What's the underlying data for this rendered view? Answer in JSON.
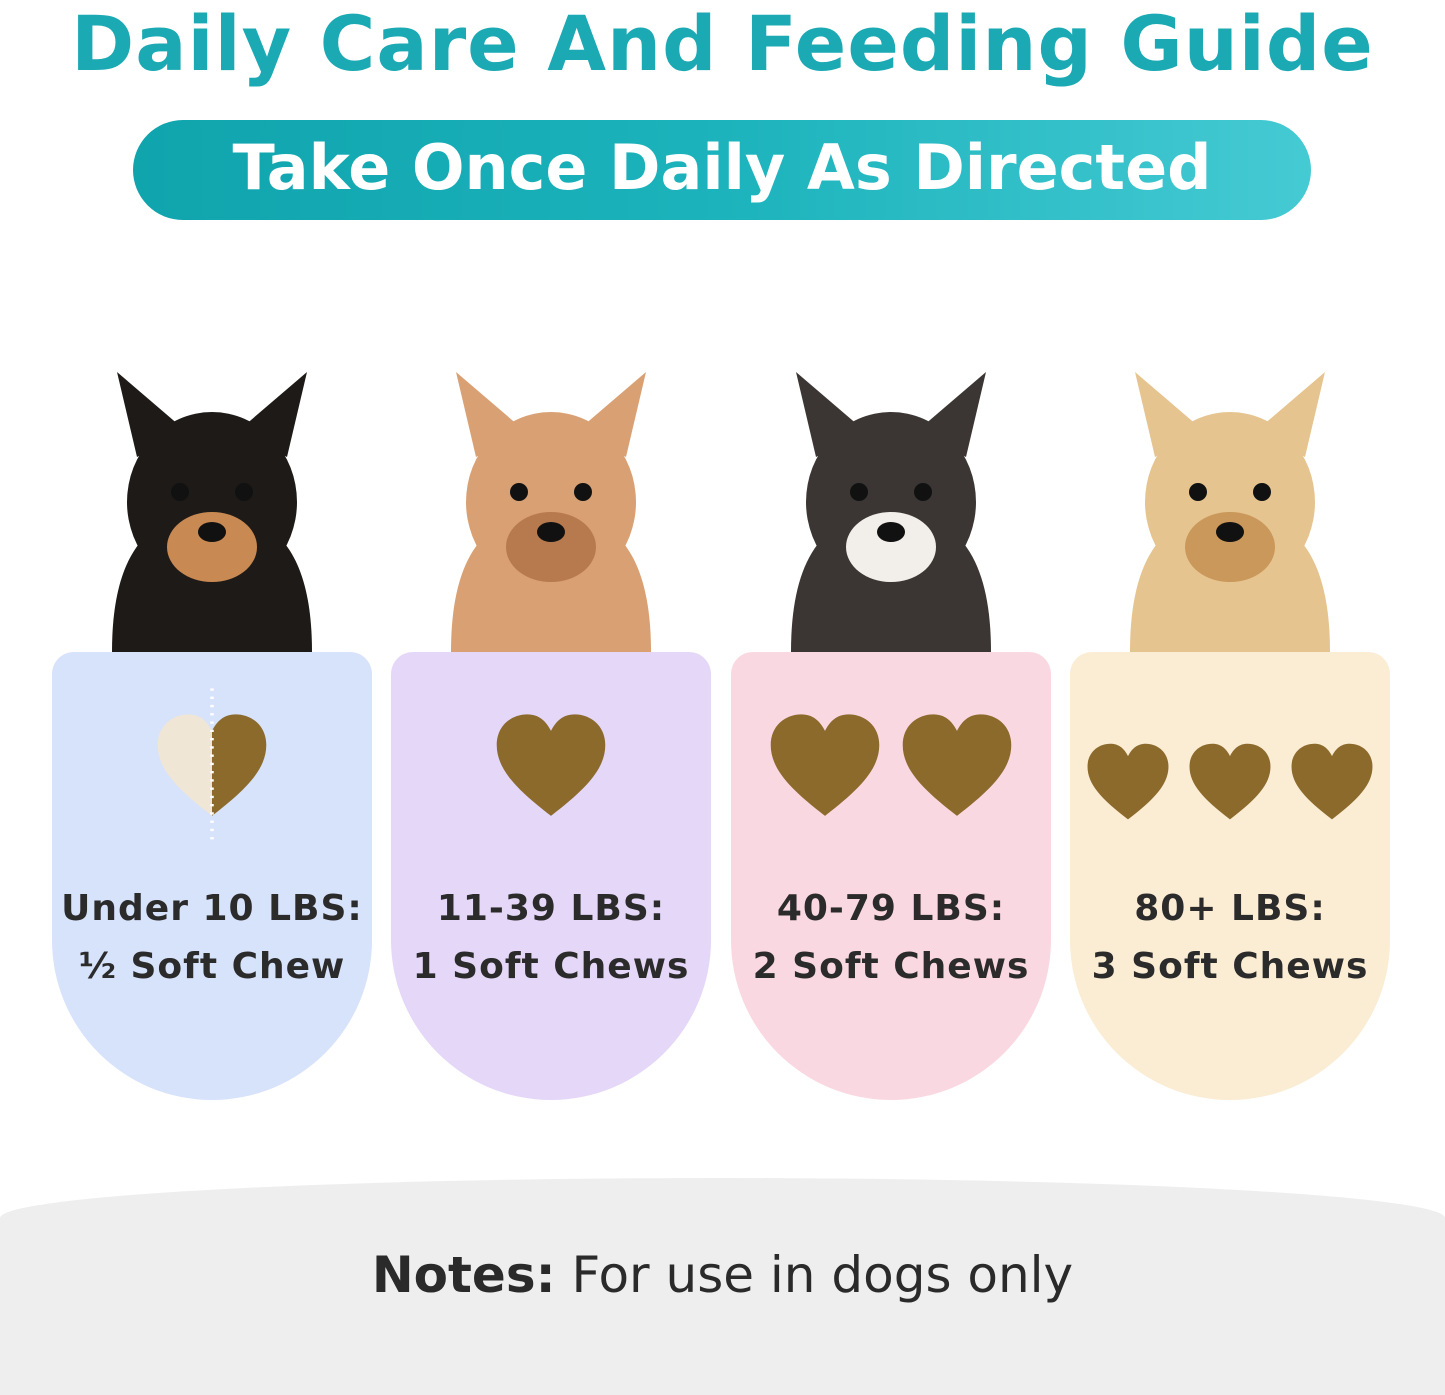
{
  "title": "Daily Care And Feeding Guide",
  "subtitle": "Take Once Daily As Directed",
  "cards": [
    {
      "weight": "Under 10 LBS:",
      "dose": "½ Soft Chew",
      "chews": 0.5,
      "color": "#d7e2fb",
      "dog": "chihuahua"
    },
    {
      "weight": "11-39 LBS:",
      "dose": "1 Soft Chews",
      "chews": 1,
      "color": "#e5d7f8",
      "dog": "poodle"
    },
    {
      "weight": "40-79 LBS:",
      "dose": "2 Soft Chews",
      "chews": 2,
      "color": "#fad8e1",
      "dog": "french-bulldog"
    },
    {
      "weight": "80+ LBS:",
      "dose": "3 Soft Chews",
      "chews": 3,
      "color": "#fbecd4",
      "dog": "golden-retriever"
    }
  ],
  "notes": {
    "label": "Notes:",
    "text": " For use in dogs only"
  },
  "colors": {
    "title": "#1ba9b3",
    "chew": "#8b6a2c",
    "chew_half_light": "#efe6d6"
  }
}
